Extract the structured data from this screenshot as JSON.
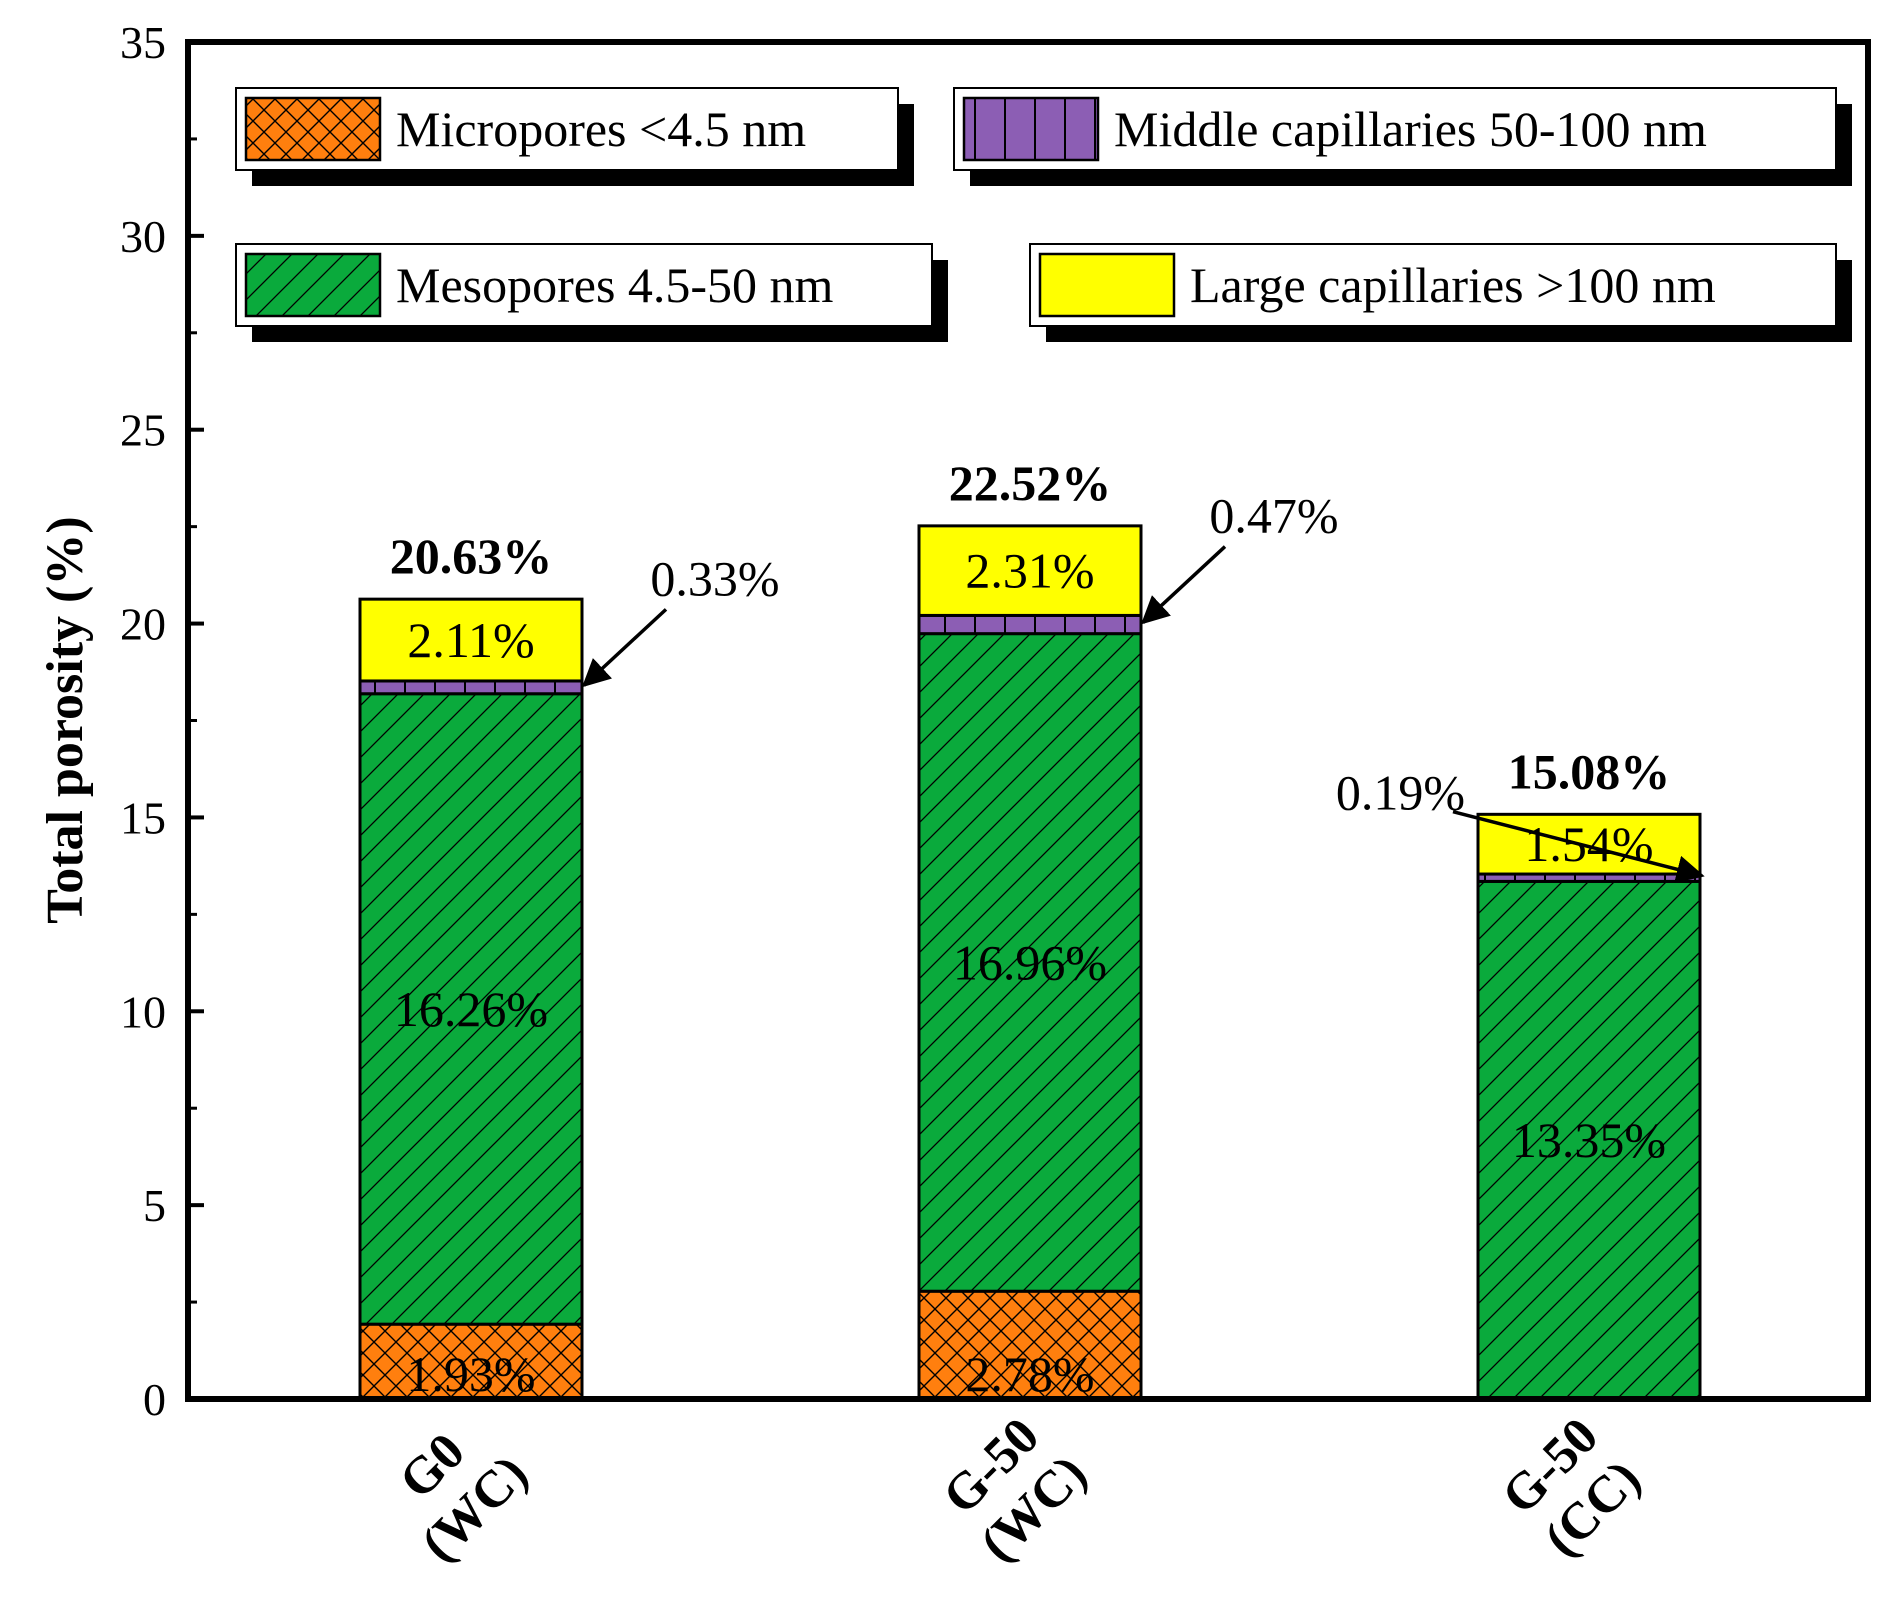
{
  "chart_data": {
    "type": "bar",
    "stacked": true,
    "title": "",
    "xlabel": "",
    "ylabel": "Total porosity (%)",
    "ylim": [
      0,
      35
    ],
    "yticks": [
      0,
      5,
      10,
      15,
      20,
      25,
      30,
      35
    ],
    "categories": [
      {
        "line1": "G0",
        "line2": "(WC)"
      },
      {
        "line1": "G-50",
        "line2": "(WC)"
      },
      {
        "line1": "G-50",
        "line2": "(CC)"
      }
    ],
    "series": [
      {
        "name": "Micropores <4.5 nm",
        "color": "#ff7f0e",
        "pattern": "crosshatch",
        "values": [
          1.93,
          2.78,
          0
        ]
      },
      {
        "name": "Mesopores 4.5-50 nm",
        "color": "#0aaa3c",
        "pattern": "diagonal",
        "values": [
          16.26,
          16.96,
          13.35
        ]
      },
      {
        "name": "Middle capillaries 50-100 nm",
        "color": "#8c5eb4",
        "pattern": "vertical",
        "values": [
          0.33,
          0.47,
          0.19
        ]
      },
      {
        "name": "Large capillaries >100 nm",
        "color": "#ffff00",
        "pattern": "solid",
        "values": [
          2.11,
          2.31,
          1.54
        ]
      }
    ],
    "segment_labels": [
      [
        "1.93%",
        "16.26%",
        "0.33%",
        "2.11%"
      ],
      [
        "2.78%",
        "16.96%",
        "0.47%",
        "2.31%"
      ],
      [
        "",
        "13.35%",
        "0.19%",
        "1.54%"
      ]
    ],
    "totals": [
      20.63,
      22.52,
      15.08
    ],
    "total_labels": [
      "20.63%",
      "22.52%",
      "15.08%"
    ],
    "legend": {
      "location": "top",
      "columns": 2
    }
  }
}
